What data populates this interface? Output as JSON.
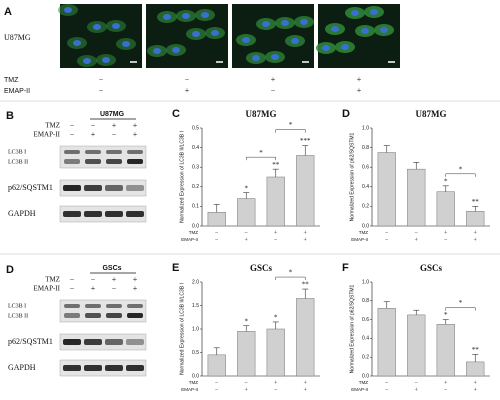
{
  "panels": {
    "A": {
      "label": "A",
      "cell": "U87MG",
      "rows": [
        {
          "name": "TMZ",
          "signs": [
            "−",
            "−",
            "+",
            "+"
          ]
        },
        {
          "name": "EMAP-II",
          "signs": [
            "−",
            "+",
            "−",
            "+"
          ]
        }
      ]
    },
    "B": {
      "label": "B",
      "cell": "U87MG",
      "rows": [
        {
          "name": "TMZ",
          "signs": [
            "−",
            "−",
            "+",
            "+"
          ]
        },
        {
          "name": "EMAP-II",
          "signs": [
            "−",
            "+",
            "−",
            "+"
          ]
        }
      ],
      "bands": [
        "LC3B I",
        "LC3B II",
        "p62/SQSTM1",
        "GAPDH"
      ]
    },
    "D": {
      "label": "D",
      "cell": "GSCs",
      "rows": [
        {
          "name": "TMZ",
          "signs": [
            "−",
            "−",
            "+",
            "+"
          ]
        },
        {
          "name": "EMAP-II",
          "signs": [
            "−",
            "+",
            "−",
            "+"
          ]
        }
      ],
      "bands": [
        "LC3B I",
        "LC3B II",
        "p62/SQSTM1",
        "GAPDH"
      ]
    }
  },
  "chart_data": [
    {
      "type": "bar",
      "label": "C",
      "title": "U87MG",
      "y_label": "Normalized Expression of LC3B II/LC3B I",
      "color": "#d0d0d0",
      "values": [
        0.07,
        0.14,
        0.25,
        0.36
      ],
      "errors": [
        0.04,
        0.03,
        0.04,
        0.05
      ],
      "stars": [
        null,
        "*",
        "**",
        "***"
      ],
      "brackets": [
        {
          "from": 1,
          "to": 2,
          "label": "*"
        },
        {
          "from": 2,
          "to": 3,
          "label": "*"
        }
      ],
      "rows": [
        {
          "name": "TMZ",
          "signs": [
            "−",
            "−",
            "+",
            "+"
          ]
        },
        {
          "name": "EMAP-II",
          "signs": [
            "−",
            "+",
            "−",
            "+"
          ]
        }
      ],
      "ylim": [
        0,
        0.5
      ],
      "yticks": [
        {
          "value": 0,
          "label": "0.0"
        },
        0.1,
        0.2,
        0.3,
        0.4,
        0.5
      ]
    },
    {
      "type": "bar",
      "label": "D",
      "title": "U87MG",
      "y_label": "Normalized Expression of p62/SQSTM1",
      "color": "#d0d0d0",
      "values": [
        0.75,
        0.58,
        0.35,
        0.15
      ],
      "errors": [
        0.07,
        0.07,
        0.06,
        0.05
      ],
      "stars": [
        null,
        null,
        "*",
        "**"
      ],
      "brackets": [
        {
          "from": 2,
          "to": 3,
          "label": "*"
        }
      ],
      "rows": [
        {
          "name": "TMZ",
          "signs": [
            "−",
            "−",
            "+",
            "+"
          ]
        },
        {
          "name": "EMAP-II",
          "signs": [
            "−",
            "+",
            "−",
            "+"
          ]
        }
      ],
      "ylim": [
        0,
        1
      ],
      "yticks": [
        {
          "value": 0,
          "label": "0.0"
        },
        0.2,
        0.4,
        0.6,
        0.8,
        {
          "value": 1,
          "label": "1.0"
        }
      ]
    },
    {
      "type": "bar",
      "label": "E",
      "title": "GSCs",
      "y_label": "Normalized Expression of LC3B II/LC3B I",
      "color": "#d0d0d0",
      "values": [
        0.45,
        0.95,
        1.0,
        1.65
      ],
      "errors": [
        0.15,
        0.12,
        0.15,
        0.2
      ],
      "stars": [
        null,
        "*",
        "*",
        "**"
      ],
      "brackets": [
        {
          "from": 2,
          "to": 3,
          "label": "*"
        }
      ],
      "rows": [
        {
          "name": "TMZ",
          "signs": [
            "−",
            "−",
            "+",
            "+"
          ]
        },
        {
          "name": "EMAP-II",
          "signs": [
            "−",
            "+",
            "−",
            "+"
          ]
        }
      ],
      "ylim": [
        0,
        2
      ],
      "yticks": [
        {
          "value": 0,
          "label": "0.0"
        },
        0.5,
        {
          "value": 1,
          "label": "1.0"
        },
        1.5,
        {
          "value": 2,
          "label": "2.0"
        }
      ]
    },
    {
      "type": "bar",
      "label": "F",
      "title": "GSCs",
      "y_label": "Normalized Expression of p62/SQSTM1",
      "color": "#d0d0d0",
      "values": [
        0.72,
        0.65,
        0.55,
        0.15
      ],
      "errors": [
        0.07,
        0.05,
        0.05,
        0.08
      ],
      "stars": [
        null,
        null,
        "*",
        "**"
      ],
      "brackets": [
        {
          "from": 2,
          "to": 3,
          "label": "*"
        }
      ],
      "rows": [
        {
          "name": "TMZ",
          "signs": [
            "−",
            "−",
            "+",
            "+"
          ]
        },
        {
          "name": "EMAP-II",
          "signs": [
            "−",
            "+",
            "−",
            "+"
          ]
        }
      ],
      "ylim": [
        0,
        1
      ],
      "yticks": [
        {
          "value": 0,
          "label": "0.0"
        },
        0.2,
        0.4,
        0.6,
        0.8,
        {
          "value": 1,
          "label": "1.0"
        }
      ]
    }
  ]
}
